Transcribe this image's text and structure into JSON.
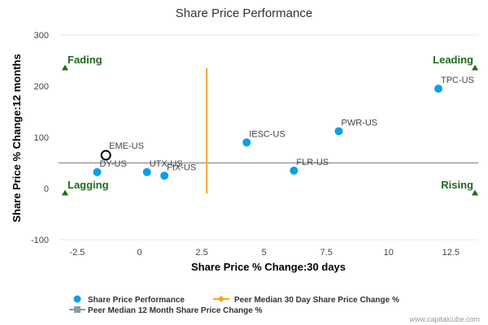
{
  "chart_data": {
    "type": "scatter",
    "title": "Share Price Performance",
    "xlabel": "Share Price % Change:30 days",
    "ylabel": "Share Price % Change:12 months",
    "xlim": [
      -3.25,
      13.6
    ],
    "ylim": [
      -100,
      300
    ],
    "x_ticks": [
      -2.5,
      0,
      2.5,
      5,
      7.5,
      10,
      12.5
    ],
    "x_tick_labels": [
      "-2.5",
      "0",
      "2.5",
      "5",
      "7.5",
      "10",
      "12.5"
    ],
    "y_ticks": [
      -100,
      0,
      100,
      200,
      300
    ],
    "y_tick_labels": [
      "-100",
      "0",
      "100",
      "200",
      "300"
    ],
    "grid": false,
    "series": [
      {
        "name": "Share Price Performance",
        "color": "#0d9ee8",
        "points": [
          {
            "label": "TPC-US",
            "x": 12.0,
            "y": 195
          },
          {
            "label": "PWR-US",
            "x": 8.0,
            "y": 112
          },
          {
            "label": "IESC-US",
            "x": 4.3,
            "y": 90
          },
          {
            "label": "FLR-US",
            "x": 6.2,
            "y": 35
          },
          {
            "label": "UTX-US",
            "x": 0.3,
            "y": 32
          },
          {
            "label": "FIX-US",
            "x": 1.0,
            "y": 25
          },
          {
            "label": "DY-US",
            "x": -1.7,
            "y": 32
          }
        ]
      }
    ],
    "highlight_point": {
      "label": "EME-US",
      "x": -1.35,
      "y": 65
    },
    "peer_median_30d": {
      "name": "Peer Median 30 Day Share Price Change %",
      "x": 2.7,
      "y_range": [
        -10,
        235
      ],
      "color": "#f5a623"
    },
    "peer_median_12m": {
      "name": "Peer Median 12 Month Share Price Change %",
      "y": 50,
      "color": "#8f9aa8"
    },
    "quadrants": [
      {
        "label": "Fading",
        "corner": "top-left"
      },
      {
        "label": "Leading",
        "corner": "top-right"
      },
      {
        "label": "Lagging",
        "corner": "bottom-left"
      },
      {
        "label": "Rising",
        "corner": "bottom-right"
      }
    ],
    "quadrant_color": "#1f6b1f",
    "legend_position": "bottom-left"
  },
  "credit": "www.capitalcube.com"
}
